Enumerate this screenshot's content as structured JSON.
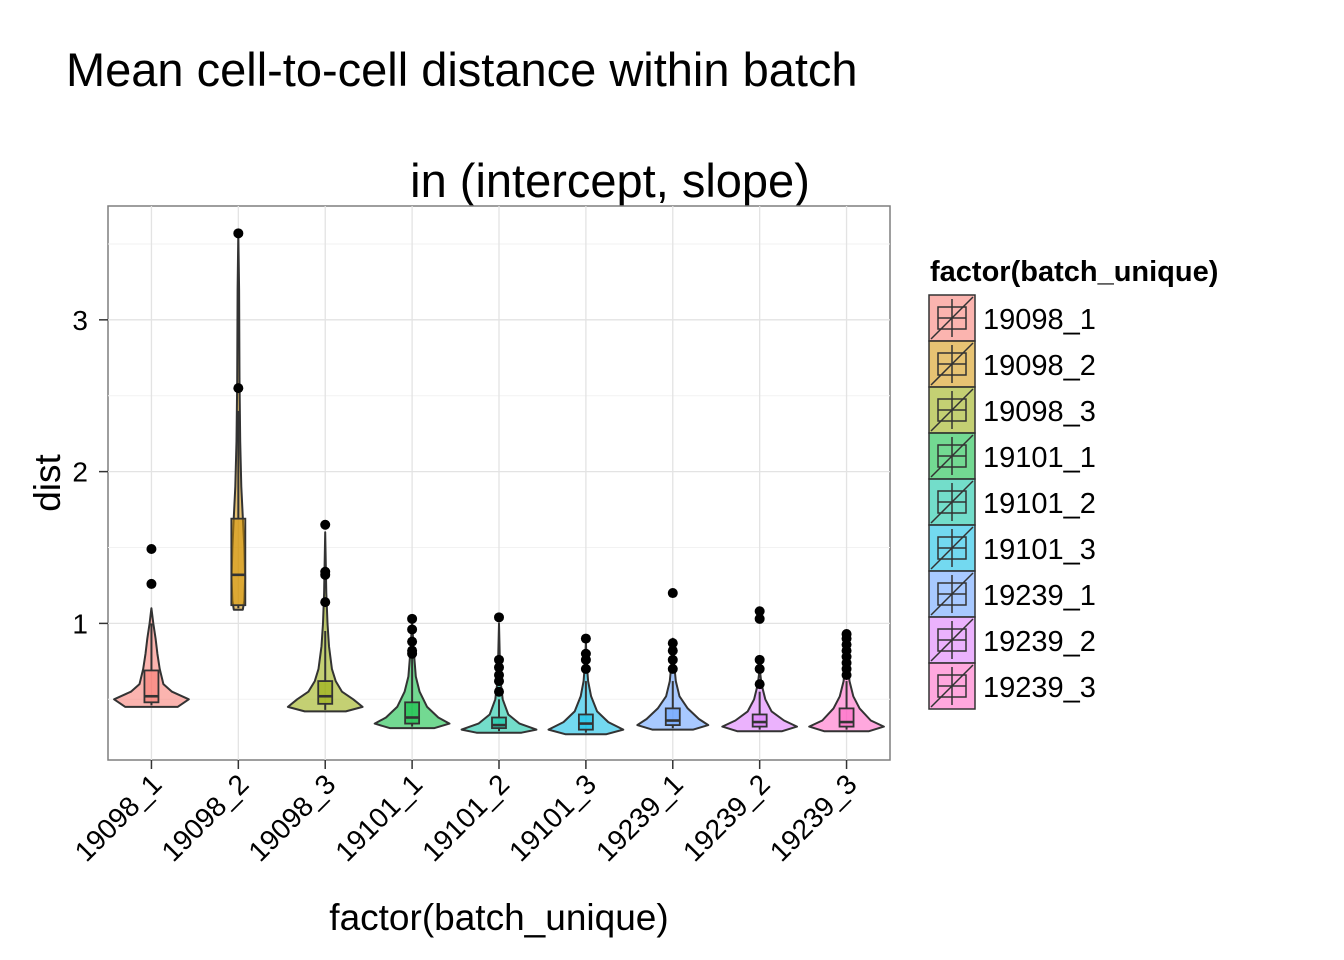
{
  "chart_data": {
    "type": "violin",
    "title_line1": "Mean cell-to-cell distance within batch",
    "title_line2": "in (intercept, slope)",
    "xlabel": "factor(batch_unique)",
    "ylabel": "dist",
    "ylim": [
      0.1,
      3.75
    ],
    "yticks": [
      1,
      2,
      3
    ],
    "grid": true,
    "legend": {
      "title": "factor(batch_unique)",
      "position": "right"
    },
    "categories": [
      "19098_1",
      "19098_2",
      "19098_3",
      "19101_1",
      "19101_2",
      "19101_3",
      "19239_1",
      "19239_2",
      "19239_3"
    ],
    "series": [
      {
        "name": "19098_1",
        "color": "#F8766D",
        "min": 0.46,
        "q1": 0.48,
        "median": 0.52,
        "q3": 0.69,
        "max": 1.0,
        "outliers": [
          1.26,
          1.49
        ],
        "density": [
          [
            0.45,
            0.7
          ],
          [
            0.5,
            1.0
          ],
          [
            0.55,
            0.55
          ],
          [
            0.6,
            0.32
          ],
          [
            0.7,
            0.22
          ],
          [
            0.8,
            0.16
          ],
          [
            0.9,
            0.11
          ],
          [
            1.0,
            0.05
          ],
          [
            1.1,
            0.0
          ]
        ]
      },
      {
        "name": "19098_2",
        "color": "#D39200",
        "min": 1.1,
        "q1": 1.12,
        "median": 1.32,
        "q3": 1.69,
        "max": 2.4,
        "outliers": [
          2.55,
          3.57
        ],
        "density": [
          [
            1.09,
            0.12
          ],
          [
            1.15,
            0.16
          ],
          [
            1.3,
            0.18
          ],
          [
            1.5,
            0.16
          ],
          [
            1.7,
            0.12
          ],
          [
            1.9,
            0.08
          ],
          [
            2.2,
            0.05
          ],
          [
            2.6,
            0.03
          ],
          [
            3.2,
            0.02
          ],
          [
            3.57,
            0.0
          ]
        ]
      },
      {
        "name": "19098_3",
        "color": "#93AA00",
        "min": 0.43,
        "q1": 0.47,
        "median": 0.52,
        "q3": 0.62,
        "max": 0.95,
        "outliers": [
          1.14,
          1.32,
          1.34,
          1.65
        ],
        "density": [
          [
            0.42,
            0.55
          ],
          [
            0.45,
            1.0
          ],
          [
            0.5,
            0.75
          ],
          [
            0.55,
            0.45
          ],
          [
            0.62,
            0.28
          ],
          [
            0.7,
            0.18
          ],
          [
            0.85,
            0.1
          ],
          [
            1.0,
            0.06
          ],
          [
            1.2,
            0.03
          ],
          [
            1.6,
            0.0
          ]
        ]
      },
      {
        "name": "19101_1",
        "color": "#00BA38",
        "min": 0.32,
        "q1": 0.34,
        "median": 0.38,
        "q3": 0.48,
        "max": 0.78,
        "outliers": [
          0.8,
          0.82,
          0.88,
          0.96,
          1.03
        ],
        "density": [
          [
            0.31,
            0.6
          ],
          [
            0.34,
            1.0
          ],
          [
            0.38,
            0.7
          ],
          [
            0.45,
            0.4
          ],
          [
            0.55,
            0.2
          ],
          [
            0.65,
            0.1
          ],
          [
            0.8,
            0.05
          ],
          [
            1.0,
            0.0
          ]
        ]
      },
      {
        "name": "19101_2",
        "color": "#00C19F",
        "min": 0.29,
        "q1": 0.31,
        "median": 0.33,
        "q3": 0.38,
        "max": 0.5,
        "outliers": [
          0.55,
          0.62,
          0.66,
          0.71,
          0.76,
          1.04
        ],
        "density": [
          [
            0.28,
            0.6
          ],
          [
            0.3,
            1.0
          ],
          [
            0.34,
            0.55
          ],
          [
            0.4,
            0.25
          ],
          [
            0.5,
            0.1
          ],
          [
            0.6,
            0.05
          ],
          [
            0.8,
            0.02
          ],
          [
            1.0,
            0.0
          ]
        ]
      },
      {
        "name": "19101_3",
        "color": "#00B9E3",
        "min": 0.28,
        "q1": 0.3,
        "median": 0.34,
        "q3": 0.4,
        "max": 0.62,
        "outliers": [
          0.7,
          0.76,
          0.8,
          0.9
        ],
        "density": [
          [
            0.27,
            0.55
          ],
          [
            0.3,
            1.0
          ],
          [
            0.35,
            0.6
          ],
          [
            0.42,
            0.3
          ],
          [
            0.52,
            0.14
          ],
          [
            0.62,
            0.06
          ],
          [
            0.75,
            0.02
          ],
          [
            0.88,
            0.0
          ]
        ]
      },
      {
        "name": "19239_1",
        "color": "#619CFF",
        "min": 0.31,
        "q1": 0.33,
        "median": 0.36,
        "q3": 0.44,
        "max": 0.62,
        "outliers": [
          0.7,
          0.76,
          0.82,
          0.87,
          1.2
        ],
        "density": [
          [
            0.3,
            0.55
          ],
          [
            0.33,
            0.95
          ],
          [
            0.37,
            0.7
          ],
          [
            0.44,
            0.4
          ],
          [
            0.52,
            0.18
          ],
          [
            0.62,
            0.08
          ],
          [
            0.75,
            0.03
          ],
          [
            0.9,
            0.0
          ]
        ]
      },
      {
        "name": "19239_2",
        "color": "#DB72FB",
        "min": 0.3,
        "q1": 0.32,
        "median": 0.35,
        "q3": 0.4,
        "max": 0.55,
        "outliers": [
          0.6,
          0.7,
          0.76,
          1.03,
          1.08
        ],
        "density": [
          [
            0.29,
            0.6
          ],
          [
            0.32,
            1.0
          ],
          [
            0.36,
            0.65
          ],
          [
            0.42,
            0.32
          ],
          [
            0.5,
            0.15
          ],
          [
            0.6,
            0.05
          ],
          [
            0.7,
            0.0
          ]
        ]
      },
      {
        "name": "19239_3",
        "color": "#FF61C3",
        "min": 0.3,
        "q1": 0.32,
        "median": 0.35,
        "q3": 0.44,
        "max": 0.62,
        "outliers": [
          0.66,
          0.7,
          0.74,
          0.78,
          0.82,
          0.86,
          0.9,
          0.93
        ],
        "density": [
          [
            0.29,
            0.6
          ],
          [
            0.32,
            1.0
          ],
          [
            0.36,
            0.65
          ],
          [
            0.44,
            0.35
          ],
          [
            0.52,
            0.18
          ],
          [
            0.62,
            0.08
          ],
          [
            0.75,
            0.03
          ],
          [
            0.92,
            0.0
          ]
        ]
      }
    ]
  }
}
